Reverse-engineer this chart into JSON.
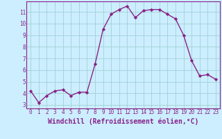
{
  "x": [
    0,
    1,
    2,
    3,
    4,
    5,
    6,
    7,
    8,
    9,
    10,
    11,
    12,
    13,
    14,
    15,
    16,
    17,
    18,
    19,
    20,
    21,
    22,
    23
  ],
  "y": [
    4.2,
    3.2,
    3.8,
    4.2,
    4.3,
    3.8,
    4.1,
    4.1,
    6.5,
    9.5,
    10.8,
    11.2,
    11.5,
    10.5,
    11.1,
    11.2,
    11.2,
    10.8,
    10.4,
    9.0,
    6.8,
    5.5,
    5.6,
    5.2
  ],
  "line_color": "#882288",
  "marker": "D",
  "marker_size": 2.2,
  "bg_color": "#cceeff",
  "grid_color": "#99cccc",
  "xlabel": "Windchill (Refroidissement éolien,°C)",
  "ylabel": "",
  "yticks": [
    3,
    4,
    5,
    6,
    7,
    8,
    9,
    10,
    11
  ],
  "ylim": [
    2.7,
    11.9
  ],
  "xlim": [
    -0.5,
    23.5
  ],
  "xticks": [
    0,
    1,
    2,
    3,
    4,
    5,
    6,
    7,
    8,
    9,
    10,
    11,
    12,
    13,
    14,
    15,
    16,
    17,
    18,
    19,
    20,
    21,
    22,
    23
  ],
  "tick_color": "#882288",
  "tick_label_fontsize": 5.5,
  "xlabel_fontsize": 7.0,
  "linewidth": 1.0
}
